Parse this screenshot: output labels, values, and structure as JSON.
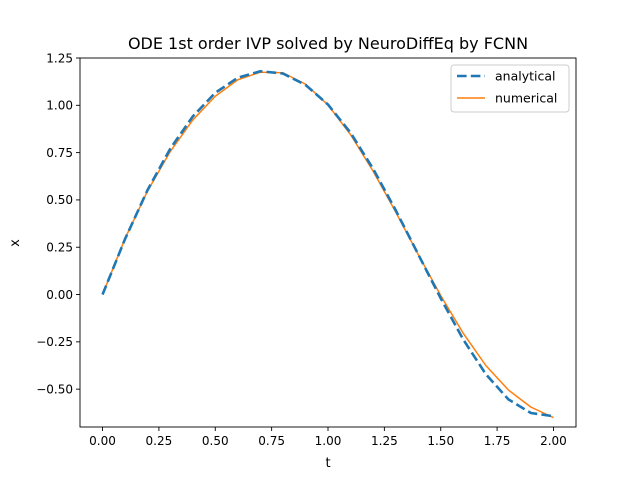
{
  "chart_data": {
    "type": "line",
    "title": "ODE 1st order IVP solved by NeuroDiffEq by FCNN",
    "xlabel": "t",
    "ylabel": "x",
    "xlim": [
      -0.1,
      2.1
    ],
    "ylim": [
      -0.7,
      1.25
    ],
    "xticks": [
      0.0,
      0.25,
      0.5,
      0.75,
      1.0,
      1.25,
      1.5,
      1.75,
      2.0
    ],
    "xtick_labels": [
      "0.00",
      "0.25",
      "0.50",
      "0.75",
      "1.00",
      "1.25",
      "1.50",
      "1.75",
      "2.00"
    ],
    "yticks": [
      -0.5,
      -0.25,
      0.0,
      0.25,
      0.5,
      0.75,
      1.0,
      1.25
    ],
    "ytick_labels": [
      "−0.50",
      "−0.25",
      "0.00",
      "0.25",
      "0.50",
      "0.75",
      "1.00",
      "1.25"
    ],
    "grid": false,
    "legend_position": "top-right",
    "series": [
      {
        "name": "analytical",
        "color": "#1f77b4",
        "style": "dashed",
        "x": [
          0.0,
          0.1,
          0.2,
          0.3,
          0.4,
          0.5,
          0.6,
          0.7,
          0.8,
          0.9,
          1.0,
          1.1,
          1.2,
          1.3,
          1.4,
          1.5,
          1.6,
          1.7,
          1.8,
          1.9,
          2.0
        ],
        "y": [
          0.0,
          0.294,
          0.553,
          0.77,
          0.941,
          1.066,
          1.146,
          1.18,
          1.168,
          1.108,
          1.004,
          0.855,
          0.665,
          0.446,
          0.213,
          -0.02,
          -0.238,
          -0.421,
          -0.554,
          -0.626,
          -0.643
        ]
      },
      {
        "name": "numerical",
        "color": "#ff7f0e",
        "style": "solid",
        "x": [
          0.0,
          0.1,
          0.2,
          0.3,
          0.4,
          0.5,
          0.6,
          0.7,
          0.8,
          0.9,
          1.0,
          1.1,
          1.2,
          1.3,
          1.4,
          1.5,
          1.6,
          1.7,
          1.8,
          1.9,
          2.0
        ],
        "y": [
          0.0,
          0.297,
          0.548,
          0.755,
          0.922,
          1.048,
          1.135,
          1.175,
          1.172,
          1.112,
          1.002,
          0.845,
          0.652,
          0.437,
          0.212,
          -0.005,
          -0.205,
          -0.375,
          -0.504,
          -0.595,
          -0.65
        ]
      }
    ]
  }
}
